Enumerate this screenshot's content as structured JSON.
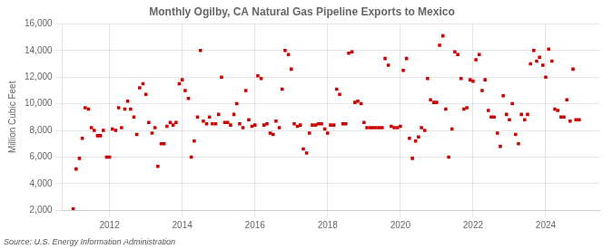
{
  "chart_data": {
    "type": "scatter",
    "title": "Monthly Ogilby, CA Natural Gas Pipeline Exports to Mexico",
    "ylabel": "Million Cubic Feet",
    "annotations": [
      "Source: U.S. Energy Information Administration"
    ],
    "color": "#cc0000",
    "marker": "square",
    "grid": true,
    "xlim": [
      2010.7,
      2025.5
    ],
    "xticks": [
      2012,
      2014,
      2016,
      2018,
      2020,
      2022,
      2024
    ],
    "ylim": [
      2000,
      16000
    ],
    "yticks": [
      {
        "value": 2000,
        "label": "2,000"
      },
      {
        "value": 4000,
        "label": "4,000"
      },
      {
        "value": 6000,
        "label": "6,000"
      },
      {
        "value": 8000,
        "label": "8,000"
      },
      {
        "value": 10000,
        "label": "10,000"
      },
      {
        "value": 12000,
        "label": "12,000"
      },
      {
        "value": 14000,
        "label": "14,000"
      },
      {
        "value": 16000,
        "label": "16,000"
      }
    ],
    "x": [
      2011.0,
      2011.08,
      2011.17,
      2011.25,
      2011.33,
      2011.42,
      2011.5,
      2011.58,
      2011.67,
      2011.75,
      2011.83,
      2011.92,
      2012.0,
      2012.08,
      2012.17,
      2012.25,
      2012.33,
      2012.42,
      2012.5,
      2012.58,
      2012.67,
      2012.75,
      2012.83,
      2012.92,
      2013.0,
      2013.08,
      2013.17,
      2013.25,
      2013.33,
      2013.42,
      2013.5,
      2013.58,
      2013.67,
      2013.75,
      2013.83,
      2013.92,
      2014.0,
      2014.08,
      2014.17,
      2014.25,
      2014.33,
      2014.42,
      2014.5,
      2014.58,
      2014.67,
      2014.75,
      2014.83,
      2014.92,
      2015.0,
      2015.08,
      2015.17,
      2015.25,
      2015.33,
      2015.42,
      2015.5,
      2015.58,
      2015.67,
      2015.75,
      2015.83,
      2015.92,
      2016.0,
      2016.08,
      2016.17,
      2016.25,
      2016.33,
      2016.42,
      2016.5,
      2016.58,
      2016.67,
      2016.75,
      2016.83,
      2016.92,
      2017.0,
      2017.08,
      2017.17,
      2017.25,
      2017.33,
      2017.42,
      2017.5,
      2017.58,
      2017.67,
      2017.75,
      2017.83,
      2017.92,
      2018.0,
      2018.08,
      2018.17,
      2018.25,
      2018.33,
      2018.42,
      2018.5,
      2018.58,
      2018.67,
      2018.75,
      2018.83,
      2018.92,
      2019.0,
      2019.08,
      2019.17,
      2019.25,
      2019.33,
      2019.42,
      2019.5,
      2019.58,
      2019.67,
      2019.75,
      2019.83,
      2019.92,
      2020.0,
      2020.08,
      2020.17,
      2020.25,
      2020.33,
      2020.42,
      2020.5,
      2020.58,
      2020.67,
      2020.75,
      2020.83,
      2020.92,
      2021.0,
      2021.08,
      2021.17,
      2021.25,
      2021.33,
      2021.42,
      2021.5,
      2021.58,
      2021.67,
      2021.75,
      2021.83,
      2021.92,
      2022.0,
      2022.08,
      2022.17,
      2022.25,
      2022.33,
      2022.42,
      2022.5,
      2022.58,
      2022.67,
      2022.75,
      2022.83,
      2022.92,
      2023.0,
      2023.08,
      2023.17,
      2023.25,
      2023.33,
      2023.42,
      2023.5,
      2023.58,
      2023.67,
      2023.75,
      2023.83,
      2023.92,
      2024.0,
      2024.08,
      2024.17,
      2024.25,
      2024.33,
      2024.42,
      2024.5,
      2024.58,
      2024.67,
      2024.75,
      2024.83,
      2024.92
    ],
    "values": [
      2100,
      5100,
      5900,
      7400,
      9700,
      9600,
      8200,
      8000,
      7600,
      7600,
      8000,
      6000,
      6000,
      8100,
      8000,
      9700,
      8200,
      9600,
      10200,
      9600,
      9000,
      7700,
      11200,
      11500,
      10700,
      8600,
      7800,
      8200,
      5300,
      7000,
      7000,
      8300,
      8600,
      8400,
      8600,
      11500,
      11800,
      11000,
      10400,
      6000,
      7200,
      9000,
      14000,
      8700,
      8500,
      9000,
      8500,
      8500,
      9200,
      12000,
      8600,
      8600,
      8400,
      9200,
      10000,
      8500,
      8200,
      11000,
      8800,
      8300,
      8400,
      12100,
      11900,
      8400,
      8500,
      7800,
      7700,
      8700,
      8200,
      11100,
      14000,
      13700,
      12600,
      8500,
      8300,
      8400,
      6600,
      6300,
      7800,
      8400,
      8400,
      8500,
      8500,
      8100,
      7800,
      8400,
      8400,
      11100,
      10700,
      8500,
      8500,
      13800,
      13900,
      10100,
      10200,
      10000,
      8600,
      8200,
      8200,
      8200,
      8200,
      8200,
      8200,
      13400,
      12900,
      8300,
      8200,
      8200,
      8300,
      12500,
      13400,
      7400,
      5900,
      7200,
      7500,
      8200,
      8000,
      11900,
      10300,
      10100,
      10100,
      14400,
      15100,
      9600,
      6000,
      8100,
      13900,
      13700,
      11900,
      9600,
      9700,
      11800,
      11700,
      13300,
      13700,
      11000,
      11800,
      9500,
      9000,
      9000,
      7800,
      6800,
      10600,
      9200,
      8800,
      10000,
      7700,
      7000,
      9200,
      8800,
      9200,
      13000,
      14000,
      13200,
      13500,
      12900,
      12000,
      14100,
      13200,
      9600,
      9500,
      9000,
      9000,
      10300,
      8700,
      12600,
      8800,
      8800
    ]
  }
}
